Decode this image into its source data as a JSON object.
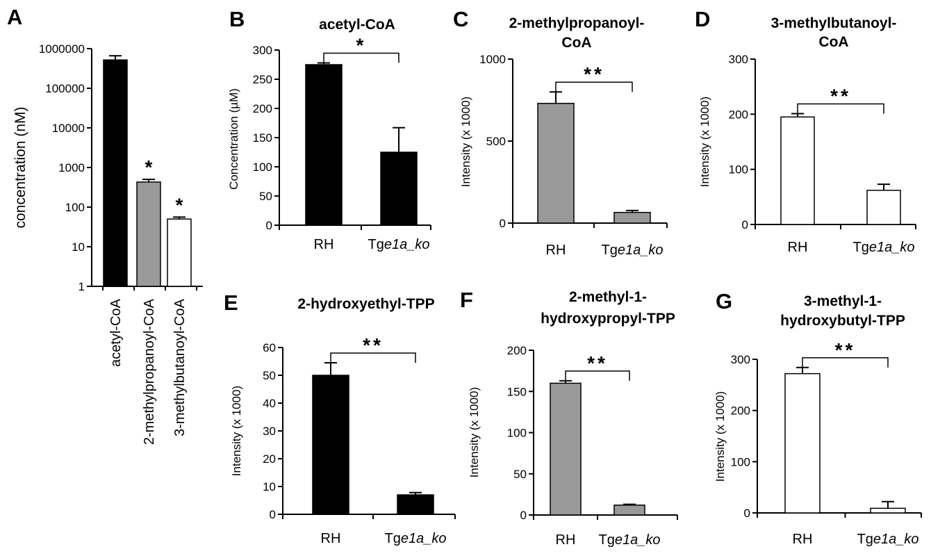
{
  "chart_data": [
    {
      "panel": "A",
      "type": "bar",
      "title": "",
      "ylabel": "concentration (nM)",
      "yscale": "log",
      "ylim": [
        1,
        1000000
      ],
      "yticks": [
        "1",
        "10",
        "100",
        "1000",
        "10000",
        "100000",
        "1000000"
      ],
      "categories": [
        "acetyl-CoA",
        "2-methylpropanoyl-CoA",
        "3-methylbutanoyl-CoA"
      ],
      "values": [
        520000,
        430,
        50
      ],
      "errors": [
        140000,
        70,
        6
      ],
      "fills": [
        "#000000",
        "#999999",
        "#ffffff"
      ],
      "annotations": [
        "",
        "*",
        "*"
      ]
    },
    {
      "panel": "B",
      "type": "bar",
      "title": "acetyl-CoA",
      "ylabel": "Concentration (µM)",
      "ylim": [
        0,
        300
      ],
      "yticks": [
        "0",
        "50",
        "100",
        "150",
        "200",
        "250",
        "300"
      ],
      "categories": [
        "RH",
        "Tge1a_ko"
      ],
      "values": [
        275,
        125
      ],
      "errors": [
        3,
        42
      ],
      "fill": "#000000",
      "significance": "*"
    },
    {
      "panel": "C",
      "type": "bar",
      "title": "2-methylpropanoyl-CoA",
      "ylabel": "Intensity (x 1000)",
      "ylim": [
        0,
        1000
      ],
      "yticks": [
        "0",
        "500",
        "1000"
      ],
      "categories": [
        "RH",
        "Tge1a_ko"
      ],
      "values": [
        730,
        65
      ],
      "errors": [
        70,
        12
      ],
      "fill": "#999999",
      "significance": "**"
    },
    {
      "panel": "D",
      "type": "bar",
      "title": "3-methylbutanoyl-CoA",
      "ylabel": "Intensity (x 1000)",
      "ylim": [
        0,
        300
      ],
      "yticks": [
        "0",
        "100",
        "200",
        "300"
      ],
      "categories": [
        "RH",
        "Tge1a_ko"
      ],
      "values": [
        195,
        62
      ],
      "errors": [
        6,
        11
      ],
      "fill": "#ffffff",
      "significance": "**"
    },
    {
      "panel": "E",
      "type": "bar",
      "title": "2-hydroxyethyl-TPP",
      "ylabel": "Intensity (x 1000)",
      "ylim": [
        0,
        60
      ],
      "yticks": [
        "0",
        "10",
        "20",
        "30",
        "40",
        "50",
        "60"
      ],
      "categories": [
        "RH",
        "Tge1a_ko"
      ],
      "values": [
        50,
        7
      ],
      "errors": [
        4.5,
        0.8
      ],
      "fill": "#000000",
      "significance": "**"
    },
    {
      "panel": "F",
      "type": "bar",
      "title": "2-methyl-1-hydroxypropyl-TPP",
      "ylabel": "Intensity (x 1000)",
      "ylim": [
        0,
        200
      ],
      "yticks": [
        "0",
        "50",
        "100",
        "150",
        "200"
      ],
      "categories": [
        "RH",
        "Tge1a_ko"
      ],
      "values": [
        160,
        12
      ],
      "errors": [
        3,
        1
      ],
      "fill": "#999999",
      "significance": "**"
    },
    {
      "panel": "G",
      "type": "bar",
      "title": "3-methyl-1-hydroxybutyl-TPP",
      "ylabel": "Intensity (x 1000)",
      "ylim": [
        0,
        300
      ],
      "yticks": [
        "0",
        "100",
        "200",
        "300"
      ],
      "categories": [
        "RH",
        "Tge1a_ko"
      ],
      "values": [
        272,
        9
      ],
      "errors": [
        12,
        13
      ],
      "fill": "#ffffff",
      "significance": "**"
    }
  ]
}
